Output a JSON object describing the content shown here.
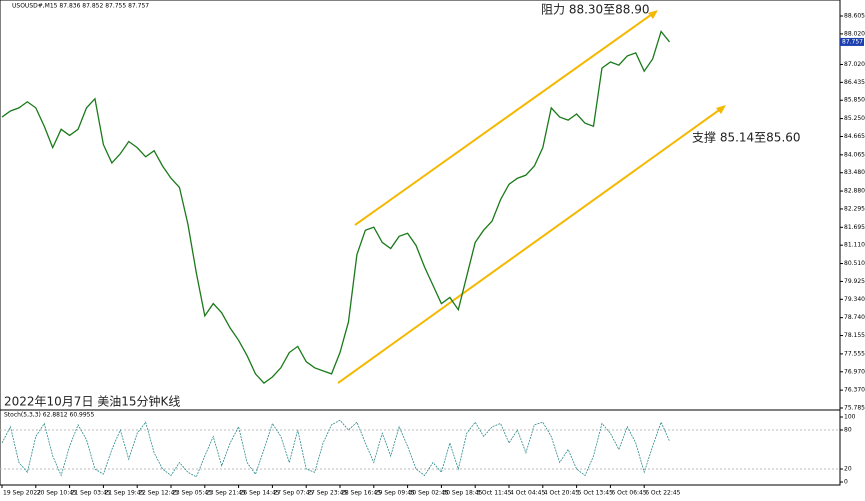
{
  "chart_data": [
    {
      "type": "line",
      "title": "USOUSD#,M15  87.836 87.852 87.755 87.757",
      "annotations": [
        "阻力 88.30至88.90",
        "支撑 85.14至85.60",
        "2022年10月7日 美油15分钟K线"
      ],
      "current_price": 87.757,
      "categories": [
        "19 Sep 2022",
        null,
        null,
        null,
        "20 Sep 10:45",
        null,
        null,
        null,
        "21 Sep 03:45",
        null,
        null,
        null,
        "21 Sep 19:45",
        null,
        null,
        null,
        "22 Sep 12:45",
        null,
        null,
        null,
        "23 Sep 05:45",
        null,
        null,
        null,
        "23 Sep 21:45",
        null,
        null,
        null,
        "26 Sep 14:45",
        null,
        null,
        null,
        "27 Sep 07:45",
        null,
        null,
        null,
        "27 Sep 23:45",
        null,
        null,
        null,
        "28 Sep 16:45",
        null,
        null,
        null,
        "29 Sep 09:45",
        null,
        null,
        null,
        "30 Sep 02:45",
        null,
        null,
        null,
        "30 Sep 18:45",
        null,
        null,
        null,
        "3 Oct 11:45",
        null,
        null,
        null,
        "4 Oct 04:45",
        null,
        null,
        null,
        "4 Oct 20:45",
        null,
        null,
        null,
        "5 Oct 13:45",
        null,
        null,
        null,
        "6 Oct 06:45",
        null,
        null,
        null,
        "6 Oct 22:45",
        null,
        null,
        null
      ],
      "series": [
        {
          "color": "#1a7a1a",
          "values": [
            85.3,
            85.5,
            85.6,
            85.8,
            85.6,
            85.0,
            84.3,
            84.9,
            84.7,
            84.9,
            85.6,
            85.9,
            84.4,
            83.8,
            84.1,
            84.5,
            84.3,
            84.0,
            84.2,
            83.7,
            83.3,
            83.0,
            81.8,
            80.2,
            78.8,
            79.2,
            78.9,
            78.4,
            78.0,
            77.5,
            76.9,
            76.6,
            76.8,
            77.1,
            77.6,
            77.8,
            77.3,
            77.1,
            77.0,
            76.9,
            77.6,
            78.6,
            80.8,
            81.6,
            81.7,
            81.2,
            81.0,
            81.4,
            81.5,
            81.1,
            80.4,
            79.8,
            79.2,
            79.4,
            79.0,
            80.1,
            81.2,
            81.6,
            81.9,
            82.6,
            83.1,
            83.3,
            83.4,
            83.7,
            84.3,
            85.6,
            85.3,
            85.2,
            85.4,
            85.1,
            85.0,
            86.9,
            87.1,
            87.0,
            87.3,
            87.4,
            86.8,
            87.2,
            88.1,
            87.757
          ]
        }
      ],
      "ylim": [
        75.72,
        88.965
      ],
      "yticks": [
        {
          "value": 88.605,
          "label": "88.605"
        },
        {
          "value": 88.02,
          "label": "88.020"
        },
        {
          "value": 87.02,
          "label": "87.020"
        },
        86.435,
        {
          "value": 85.85,
          "label": "85.850"
        },
        {
          "value": 85.25,
          "label": "85.250"
        },
        84.665,
        84.065,
        {
          "value": 83.48,
          "label": "83.480"
        },
        {
          "value": 82.88,
          "label": "82.880"
        },
        82.295,
        81.695,
        {
          "value": 81.11,
          "label": "81.110"
        },
        {
          "value": 80.51,
          "label": "80.510"
        },
        79.925,
        {
          "value": 79.34,
          "label": "79.340"
        },
        {
          "value": 78.74,
          "label": "78.740"
        },
        78.155,
        77.555,
        {
          "value": 76.97,
          "label": "76.970"
        },
        {
          "value": 76.37,
          "label": "76.370"
        },
        75.785
      ]
    },
    {
      "type": "line",
      "title": "Stoch(5,3,3) 62.8812 60.9955",
      "series": [
        {
          "color": "#2a8a8a",
          "values": [
            60,
            85,
            30,
            15,
            70,
            90,
            40,
            10,
            55,
            88,
            65,
            20,
            12,
            50,
            80,
            35,
            75,
            92,
            45,
            20,
            10,
            30,
            15,
            8,
            40,
            70,
            25,
            60,
            85,
            30,
            12,
            50,
            90,
            70,
            30,
            80,
            20,
            15,
            60,
            88,
            95,
            80,
            92,
            60,
            30,
            75,
            40,
            85,
            55,
            20,
            10,
            30,
            15,
            60,
            20,
            75,
            92,
            70,
            85,
            90,
            60,
            80,
            45,
            88,
            92,
            70,
            30,
            50,
            20,
            10,
            40,
            90,
            75,
            50,
            85,
            60,
            15,
            55,
            92,
            62.8812
          ]
        }
      ],
      "ylim": [
        0,
        100
      ],
      "yticks": [
        0,
        20,
        80,
        100
      ]
    }
  ]
}
